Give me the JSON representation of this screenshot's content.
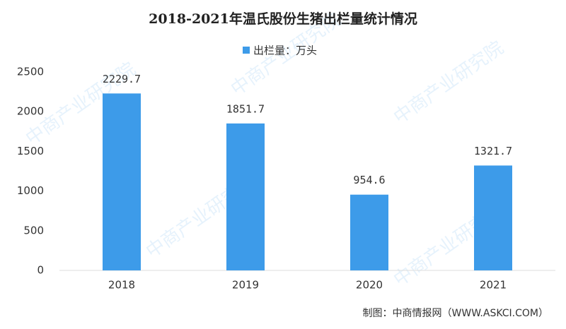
{
  "chart_data": {
    "type": "bar",
    "title": "2018-2021年温氏股份生猪出栏量统计情况",
    "legend": "出栏量：万头",
    "categories": [
      "2018",
      "2019",
      "2020",
      "2021"
    ],
    "values": [
      2229.7,
      1851.7,
      954.6,
      1321.7
    ],
    "color": "#3d9be9",
    "ylim": [
      0,
      2500
    ],
    "yticks": [
      0,
      500,
      1000,
      1500,
      2000,
      2500
    ],
    "grid": false,
    "source": "制图：中商情报网（WWW.ASKCI.COM）",
    "watermark": "中商产业研究院"
  }
}
